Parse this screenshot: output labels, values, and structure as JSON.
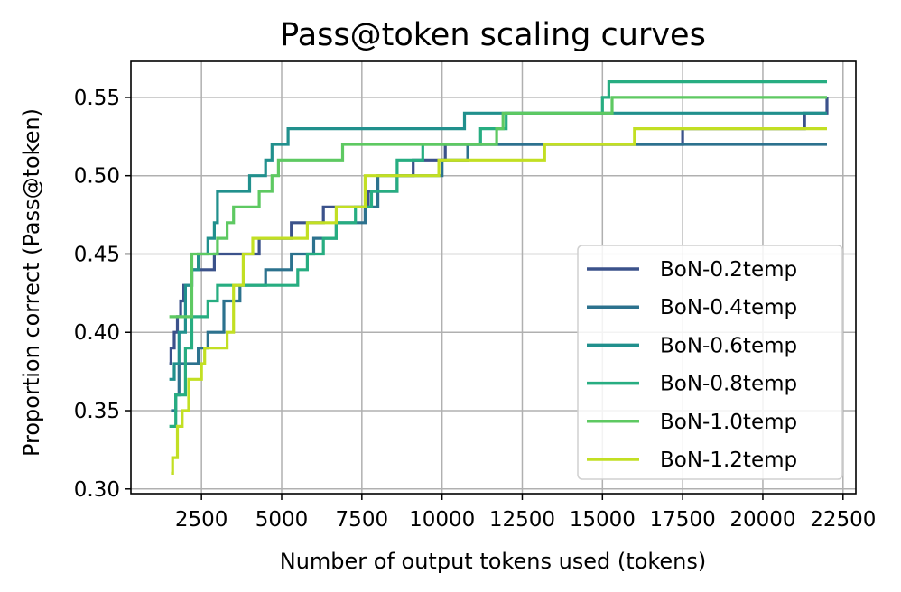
{
  "chart_data": {
    "type": "line",
    "title": "Pass@token scaling curves",
    "xlabel": "Number of output tokens used (tokens)",
    "ylabel": "Proportion correct (Pass@token)",
    "xlim": [
      300,
      22900
    ],
    "ylim": [
      0.297,
      0.573
    ],
    "xticks": [
      2500,
      5000,
      7500,
      10000,
      12500,
      15000,
      17500,
      20000,
      22500
    ],
    "xtick_labels": [
      "2500",
      "5000",
      "7500",
      "10000",
      "12500",
      "15000",
      "17500",
      "20000",
      "22500"
    ],
    "yticks": [
      0.3,
      0.35,
      0.4,
      0.45,
      0.5,
      0.55
    ],
    "ytick_labels": [
      "0.30",
      "0.35",
      "0.40",
      "0.45",
      "0.50",
      "0.55"
    ],
    "grid": true,
    "legend_position": "lower-right",
    "series": [
      {
        "name": "BoN-0.2temp",
        "color": "#3b528b",
        "points": [
          [
            1500,
            0.38
          ],
          [
            1550,
            0.39
          ],
          [
            1650,
            0.4
          ],
          [
            1750,
            0.41
          ],
          [
            1850,
            0.42
          ],
          [
            1950,
            0.43
          ],
          [
            2200,
            0.44
          ],
          [
            2900,
            0.45
          ],
          [
            4300,
            0.46
          ],
          [
            5300,
            0.47
          ],
          [
            6300,
            0.48
          ],
          [
            7400,
            0.48
          ],
          [
            7700,
            0.49
          ],
          [
            8300,
            0.49
          ],
          [
            8600,
            0.5
          ],
          [
            9100,
            0.51
          ],
          [
            10100,
            0.52
          ],
          [
            15100,
            0.52
          ],
          [
            15600,
            0.52
          ],
          [
            16400,
            0.52
          ],
          [
            17500,
            0.53
          ],
          [
            21300,
            0.54
          ],
          [
            22000,
            0.55
          ]
        ]
      },
      {
        "name": "BoN-0.4temp",
        "color": "#2c728e",
        "points": [
          [
            1550,
            0.35
          ],
          [
            1700,
            0.36
          ],
          [
            1800,
            0.38
          ],
          [
            2400,
            0.39
          ],
          [
            2700,
            0.4
          ],
          [
            3200,
            0.42
          ],
          [
            3700,
            0.43
          ],
          [
            4500,
            0.44
          ],
          [
            5300,
            0.45
          ],
          [
            6000,
            0.46
          ],
          [
            6700,
            0.47
          ],
          [
            7600,
            0.48
          ],
          [
            8000,
            0.5
          ],
          [
            9700,
            0.5
          ],
          [
            10000,
            0.51
          ],
          [
            10800,
            0.52
          ],
          [
            22000,
            0.52
          ]
        ]
      },
      {
        "name": "BoN-0.6temp",
        "color": "#21908d",
        "points": [
          [
            1500,
            0.37
          ],
          [
            1650,
            0.38
          ],
          [
            1800,
            0.4
          ],
          [
            2000,
            0.43
          ],
          [
            2200,
            0.44
          ],
          [
            2400,
            0.45
          ],
          [
            2700,
            0.46
          ],
          [
            2900,
            0.47
          ],
          [
            3000,
            0.49
          ],
          [
            4000,
            0.5
          ],
          [
            4500,
            0.51
          ],
          [
            4700,
            0.52
          ],
          [
            5200,
            0.53
          ],
          [
            10100,
            0.53
          ],
          [
            10700,
            0.54
          ],
          [
            22000,
            0.54
          ]
        ]
      },
      {
        "name": "BoN-0.8temp",
        "color": "#27ad81",
        "points": [
          [
            1500,
            0.34
          ],
          [
            1700,
            0.36
          ],
          [
            2000,
            0.39
          ],
          [
            2200,
            0.41
          ],
          [
            2700,
            0.42
          ],
          [
            3000,
            0.43
          ],
          [
            5300,
            0.43
          ],
          [
            5500,
            0.44
          ],
          [
            5800,
            0.45
          ],
          [
            6300,
            0.46
          ],
          [
            6700,
            0.47
          ],
          [
            7300,
            0.48
          ],
          [
            7800,
            0.49
          ],
          [
            8600,
            0.51
          ],
          [
            9400,
            0.52
          ],
          [
            10900,
            0.52
          ],
          [
            11200,
            0.53
          ],
          [
            12000,
            0.54
          ],
          [
            13000,
            0.54
          ],
          [
            14000,
            0.54
          ],
          [
            15000,
            0.55
          ],
          [
            15200,
            0.56
          ],
          [
            22000,
            0.56
          ]
        ]
      },
      {
        "name": "BoN-1.0temp",
        "color": "#5ec962",
        "points": [
          [
            1500,
            0.41
          ],
          [
            2000,
            0.41
          ],
          [
            2200,
            0.45
          ],
          [
            2600,
            0.45
          ],
          [
            3000,
            0.46
          ],
          [
            3300,
            0.47
          ],
          [
            3500,
            0.48
          ],
          [
            4000,
            0.48
          ],
          [
            4300,
            0.49
          ],
          [
            4500,
            0.49
          ],
          [
            4700,
            0.5
          ],
          [
            4900,
            0.51
          ],
          [
            6900,
            0.52
          ],
          [
            9500,
            0.52
          ],
          [
            11500,
            0.52
          ],
          [
            11700,
            0.53
          ],
          [
            11900,
            0.54
          ],
          [
            15100,
            0.54
          ],
          [
            15300,
            0.55
          ],
          [
            22000,
            0.55
          ]
        ]
      },
      {
        "name": "BoN-1.2temp",
        "color": "#c2df23",
        "points": [
          [
            1550,
            0.31
          ],
          [
            1600,
            0.32
          ],
          [
            1750,
            0.34
          ],
          [
            1900,
            0.35
          ],
          [
            2100,
            0.37
          ],
          [
            2500,
            0.38
          ],
          [
            2600,
            0.39
          ],
          [
            3000,
            0.39
          ],
          [
            3300,
            0.4
          ],
          [
            3500,
            0.43
          ],
          [
            3800,
            0.45
          ],
          [
            4100,
            0.46
          ],
          [
            5600,
            0.46
          ],
          [
            5800,
            0.47
          ],
          [
            6700,
            0.48
          ],
          [
            7600,
            0.5
          ],
          [
            9700,
            0.5
          ],
          [
            9900,
            0.51
          ],
          [
            11800,
            0.51
          ],
          [
            13200,
            0.52
          ],
          [
            15200,
            0.52
          ],
          [
            16000,
            0.53
          ],
          [
            22000,
            0.53
          ]
        ]
      }
    ]
  }
}
